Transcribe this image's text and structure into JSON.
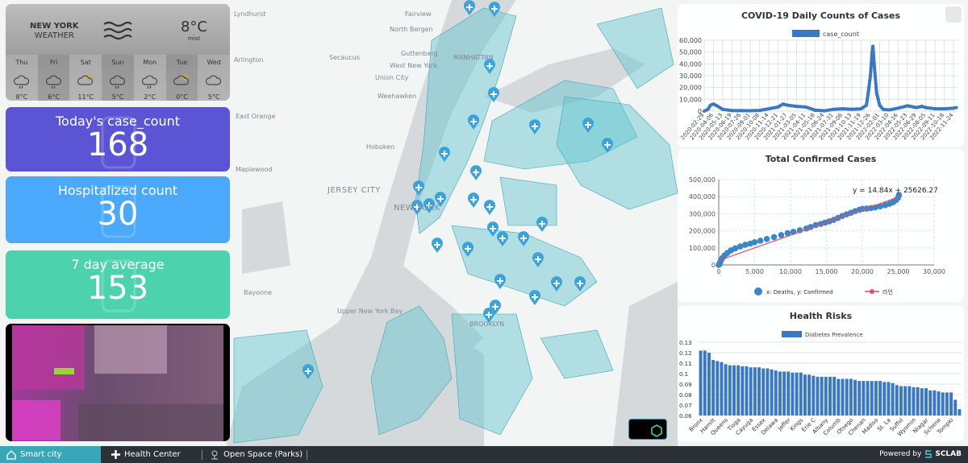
{
  "map": {
    "labels": [
      {
        "text": "Lyndhurst",
        "pos": "a"
      },
      {
        "text": "Fairview"
      },
      {
        "text": "North Bergen"
      },
      {
        "text": "Secaucus"
      },
      {
        "text": "Guttenberg"
      },
      {
        "text": "West New York"
      },
      {
        "text": "Union City"
      },
      {
        "text": "Weehawken"
      },
      {
        "text": "Arlington"
      },
      {
        "text": "Hoboken"
      },
      {
        "text": "JERSEY CITY"
      },
      {
        "text": "NEW YORK"
      },
      {
        "text": "MANHATTAN"
      },
      {
        "text": "Bayonne"
      },
      {
        "text": "Upper New York Bay"
      },
      {
        "text": "BROOKLYN"
      },
      {
        "text": "East Orange"
      },
      {
        "text": "Maplewood"
      }
    ],
    "marker_icon": "hospital-pin-icon",
    "polygon_color": "#5fc4cf"
  },
  "weather": {
    "city": "NEW YORK",
    "subtitle": "WEATHER",
    "icon": "mist-icon",
    "temp": "8°C",
    "condition": "mist",
    "days": [
      {
        "day": "Thu",
        "temp": "8°C",
        "icon": "rain-cloud"
      },
      {
        "day": "Fri",
        "temp": "6°C",
        "icon": "rain-cloud"
      },
      {
        "day": "Sat",
        "temp": "11°C",
        "icon": "partly-sunny"
      },
      {
        "day": "Sun",
        "temp": "5°C",
        "icon": "rain-cloud"
      },
      {
        "day": "Mon",
        "temp": "2°C",
        "icon": "rain-cloud"
      },
      {
        "day": "Tue",
        "temp": "0°C",
        "icon": "partly-sunny"
      },
      {
        "day": "Wed",
        "temp": "5°C",
        "icon": "cloud"
      }
    ]
  },
  "cards": [
    {
      "label": "Today's case_count",
      "value": "168",
      "color": "#5b55d6",
      "icon": "virus-icon"
    },
    {
      "label": "Hospitalized count",
      "value": "30",
      "color": "#4ba9fb",
      "icon": "hospital-icon"
    },
    {
      "label": "7 day average",
      "value": "153",
      "color": "#4cd3ae",
      "icon": "hand-icon"
    }
  ],
  "charts": {
    "daily": {
      "type": "line",
      "title": "COVID-19 Daily Counts of Cases",
      "legend": "case_count",
      "color": "#3a78c2",
      "ylim": [
        0,
        60000
      ],
      "yticks": [
        "0",
        "10,000",
        "20,000",
        "30,000",
        "40,000",
        "50,000",
        "60,000"
      ],
      "xticks": [
        "2020-02-29",
        "2020-04-06",
        "2020-05-13",
        "2020-06-19",
        "2020-07-26",
        "2020-09-01",
        "2020-10-08",
        "2020-11-14",
        "2020-12-21",
        "2021-01-27",
        "2021-03-05",
        "2021-04-11",
        "2021-05-18",
        "2021-06-24",
        "2021-07-31",
        "2021-09-06",
        "2021-10-13",
        "2021-11-19",
        "2021-12-26",
        "2022-02-01",
        "2022-03-10",
        "2022-04-16",
        "2022-05-23",
        "2022-06-29",
        "2022-08-05",
        "2022-09-11",
        "2022-10-18",
        "2022-11-24"
      ],
      "points": [
        [
          "2020-02-29",
          0
        ],
        [
          "2020-03-15",
          1500
        ],
        [
          "2020-03-25",
          5000
        ],
        [
          "2020-04-06",
          6000
        ],
        [
          "2020-04-20",
          4500
        ],
        [
          "2020-05-13",
          1500
        ],
        [
          "2020-06-19",
          500
        ],
        [
          "2020-07-26",
          400
        ],
        [
          "2020-09-01",
          350
        ],
        [
          "2020-10-08",
          600
        ],
        [
          "2020-11-14",
          2000
        ],
        [
          "2020-12-21",
          3500
        ],
        [
          "2021-01-10",
          6000
        ],
        [
          "2021-01-27",
          5000
        ],
        [
          "2021-03-05",
          4000
        ],
        [
          "2021-04-11",
          3500
        ],
        [
          "2021-05-18",
          800
        ],
        [
          "2021-06-24",
          300
        ],
        [
          "2021-07-31",
          1500
        ],
        [
          "2021-09-06",
          2000
        ],
        [
          "2021-10-13",
          1500
        ],
        [
          "2021-11-19",
          2000
        ],
        [
          "2021-12-10",
          5000
        ],
        [
          "2021-12-20",
          20000
        ],
        [
          "2021-12-26",
          30000
        ],
        [
          "2022-01-02",
          50000
        ],
        [
          "2022-01-05",
          55000
        ],
        [
          "2022-01-10",
          40000
        ],
        [
          "2022-01-20",
          15000
        ],
        [
          "2022-02-01",
          5000
        ],
        [
          "2022-02-15",
          1500
        ],
        [
          "2022-03-10",
          1000
        ],
        [
          "2022-04-16",
          2500
        ],
        [
          "2022-05-23",
          4500
        ],
        [
          "2022-06-29",
          3000
        ],
        [
          "2022-07-20",
          4000
        ],
        [
          "2022-08-05",
          3000
        ],
        [
          "2022-09-11",
          2000
        ],
        [
          "2022-10-18",
          2000
        ],
        [
          "2022-11-24",
          2500
        ],
        [
          "2022-12-05",
          3000
        ]
      ]
    },
    "scatter": {
      "type": "scatter",
      "title": "Total Confirmed Cases",
      "equation": "y = 14.84x + 25626.27",
      "xlim": [
        0,
        30000
      ],
      "ylim": [
        0,
        500000
      ],
      "xticks": [
        "0",
        "5,000",
        "10,000",
        "15,000",
        "20,000",
        "25,000",
        "30,000"
      ],
      "yticks": [
        "0",
        "100,000",
        "200,000",
        "300,000",
        "400,000",
        "500,000"
      ],
      "series_label": "x: Deaths, y: Confirmed",
      "line_label": "라인",
      "point_color": "#3a86c8",
      "line_color": "#e0506e",
      "fit": {
        "slope": 14.84,
        "intercept": 25626.27,
        "x_range": [
          0,
          25000
        ]
      },
      "points": [
        [
          0,
          0
        ],
        [
          100,
          5000
        ],
        [
          200,
          15000
        ],
        [
          300,
          25000
        ],
        [
          500,
          40000
        ],
        [
          800,
          55000
        ],
        [
          1200,
          70000
        ],
        [
          1700,
          85000
        ],
        [
          2300,
          97000
        ],
        [
          3000,
          108000
        ],
        [
          3700,
          118000
        ],
        [
          4400,
          125000
        ],
        [
          5000,
          133000
        ],
        [
          5800,
          142000
        ],
        [
          6700,
          152000
        ],
        [
          7700,
          163000
        ],
        [
          8700,
          175000
        ],
        [
          9600,
          186000
        ],
        [
          10400,
          194000
        ],
        [
          11300,
          203000
        ],
        [
          12200,
          213000
        ],
        [
          12800,
          222000
        ],
        [
          13500,
          233000
        ],
        [
          14200,
          240000
        ],
        [
          14800,
          248000
        ],
        [
          15400,
          255000
        ],
        [
          16000,
          264000
        ],
        [
          16600,
          275000
        ],
        [
          17200,
          287000
        ],
        [
          17800,
          296000
        ],
        [
          18400,
          305000
        ],
        [
          19000,
          315000
        ],
        [
          19600,
          323000
        ],
        [
          20000,
          328000
        ],
        [
          20600,
          330000
        ],
        [
          21200,
          333000
        ],
        [
          21800,
          337000
        ],
        [
          22500,
          343000
        ],
        [
          23200,
          350000
        ],
        [
          23800,
          358000
        ],
        [
          24300,
          367000
        ],
        [
          24700,
          380000
        ],
        [
          25000,
          395000
        ],
        [
          25100,
          410000
        ]
      ]
    },
    "health": {
      "type": "bar",
      "title": "Health Risks",
      "legend": "Diabetes Prevalence",
      "color": "#3a78c2",
      "ylim": [
        0.06,
        0.13
      ],
      "yticks": [
        "0.06",
        "0.07",
        "0.08",
        "0.09",
        "0.1",
        "0.11",
        "0.12",
        "0.13"
      ],
      "tick_labels": [
        "Bronx",
        "Hamilt",
        "Queens",
        "Tioga",
        "Cayuga",
        "Essex",
        "Delawa",
        "Jeffer",
        "Kings",
        "Erie C",
        "Albany",
        "Columb",
        "Otsego",
        "Chenan",
        "Madiso",
        "St. La",
        "Suffol",
        "Wyomin",
        "Niagar",
        "Schene",
        "Tompki"
      ],
      "values": [
        0.122,
        0.122,
        0.12,
        0.113,
        0.112,
        0.111,
        0.109,
        0.108,
        0.108,
        0.108,
        0.107,
        0.107,
        0.106,
        0.106,
        0.106,
        0.105,
        0.105,
        0.104,
        0.103,
        0.102,
        0.102,
        0.102,
        0.101,
        0.101,
        0.101,
        0.099,
        0.099,
        0.098,
        0.097,
        0.097,
        0.097,
        0.097,
        0.097,
        0.095,
        0.095,
        0.095,
        0.095,
        0.094,
        0.093,
        0.093,
        0.093,
        0.093,
        0.093,
        0.093,
        0.092,
        0.092,
        0.091,
        0.089,
        0.088,
        0.088,
        0.088,
        0.087,
        0.087,
        0.086,
        0.086,
        0.084,
        0.084,
        0.083,
        0.082,
        0.082,
        0.082,
        0.075,
        0.066
      ]
    }
  },
  "footer": {
    "tabs": [
      {
        "label": "Smart city",
        "icon": "home-icon"
      },
      {
        "label": "Health Center",
        "icon": "plus-icon"
      },
      {
        "label": "Open Space (Parks)",
        "icon": "park-icon"
      }
    ],
    "powered": "Powered by",
    "brand": "SCLAB"
  }
}
